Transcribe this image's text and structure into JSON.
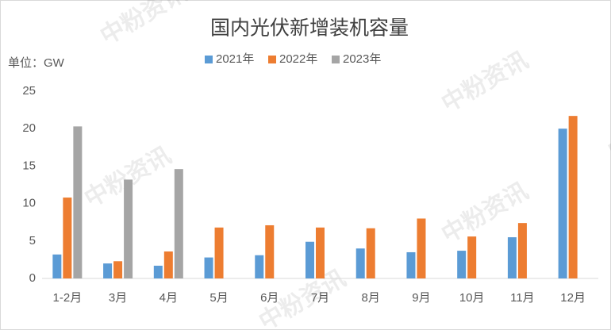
{
  "chart_data": {
    "type": "bar",
    "title": "国内光伏新增装机容量",
    "unit_label": "单位：GW",
    "watermark": "中粉资讯",
    "categories": [
      "1-2月",
      "3月",
      "4月",
      "5月",
      "6月",
      "7月",
      "8月",
      "9月",
      "10月",
      "11月",
      "12月"
    ],
    "series": [
      {
        "name": "2021年",
        "color": "#5b9bd5",
        "values": [
          3.2,
          2.0,
          1.7,
          2.8,
          3.1,
          4.9,
          4.0,
          3.5,
          3.7,
          5.5,
          20.0
        ]
      },
      {
        "name": "2022年",
        "color": "#ed7d31",
        "values": [
          10.8,
          2.3,
          3.6,
          6.8,
          7.1,
          6.8,
          6.7,
          8.0,
          5.6,
          7.4,
          21.7
        ]
      },
      {
        "name": "2023年",
        "color": "#a5a5a5",
        "values": [
          20.3,
          13.2,
          14.6,
          null,
          null,
          null,
          null,
          null,
          null,
          null,
          null
        ]
      }
    ],
    "ylim": [
      0,
      25
    ],
    "yticks": [
      0,
      5,
      10,
      15,
      20,
      25
    ],
    "grid": false,
    "legend": "top"
  }
}
